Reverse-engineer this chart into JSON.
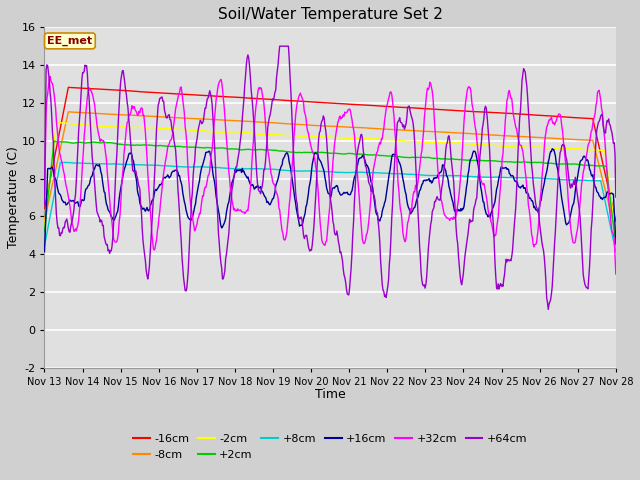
{
  "title": "Soil/Water Temperature Set 2",
  "xlabel": "Time",
  "ylabel": "Temperature (C)",
  "ylim": [
    -2,
    16
  ],
  "yticks": [
    -2,
    0,
    2,
    4,
    6,
    8,
    10,
    12,
    14,
    16
  ],
  "x_tick_labels": [
    "Nov 13",
    "Nov 14",
    "Nov 15",
    "Nov 16",
    "Nov 17",
    "Nov 18",
    "Nov 19",
    "Nov 20",
    "Nov 21",
    "Nov 22",
    "Nov 23",
    "Nov 24",
    "Nov 25",
    "Nov 26",
    "Nov 27",
    "Nov 28"
  ],
  "legend_entries": [
    "-16cm",
    "-8cm",
    "-2cm",
    "+2cm",
    "+8cm",
    "+16cm",
    "+32cm",
    "+64cm"
  ],
  "legend_colors": [
    "#ff0000",
    "#ff8800",
    "#ffff00",
    "#00cc00",
    "#00cccc",
    "#000099",
    "#ff00ff",
    "#9900cc"
  ],
  "annotation_text": "EE_met",
  "annotation_bg": "#ffffcc",
  "annotation_border": "#cc8800",
  "fig_bg": "#d0d0d0",
  "plot_bg": "#e0e0e0",
  "grid_color": "#ffffff",
  "figsize": [
    6.4,
    4.8
  ],
  "dpi": 100
}
